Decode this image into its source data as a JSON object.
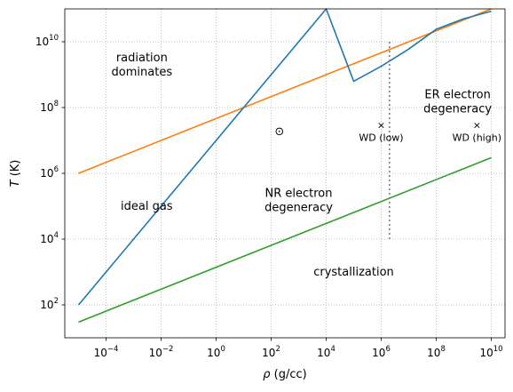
{
  "chart_data": {
    "type": "line",
    "xscale": "log",
    "yscale": "log",
    "xlim": [
      3.16e-06,
      31600000000
    ],
    "ylim": [
      10,
      100000000000
    ],
    "grid": true,
    "xlabel": {
      "var": "ρ",
      "unit": " (g/cc)"
    },
    "ylabel": {
      "var": "T",
      "unit": " (K)"
    },
    "x_ticks": [
      {
        "value": 0.0001,
        "base": "10",
        "exp": "−4"
      },
      {
        "value": 0.01,
        "base": "10",
        "exp": "−2"
      },
      {
        "value": 1,
        "base": "10",
        "exp": "0"
      },
      {
        "value": 100,
        "base": "10",
        "exp": "2"
      },
      {
        "value": 10000,
        "base": "10",
        "exp": "4"
      },
      {
        "value": 1000000,
        "base": "10",
        "exp": "6"
      },
      {
        "value": 100000000,
        "base": "10",
        "exp": "8"
      },
      {
        "value": 10000000000,
        "base": "10",
        "exp": "10"
      }
    ],
    "y_ticks": [
      {
        "value": 100,
        "base": "10",
        "exp": "2"
      },
      {
        "value": 10000,
        "base": "10",
        "exp": "4"
      },
      {
        "value": 1000000,
        "base": "10",
        "exp": "6"
      },
      {
        "value": 100000000,
        "base": "10",
        "exp": "8"
      },
      {
        "value": 10000000000,
        "base": "10",
        "exp": "10"
      }
    ],
    "series": [
      {
        "color": "#ff7f0e",
        "points": [
          [
            1e-05,
            1000000
          ],
          [
            10000000000,
            100000000000
          ]
        ]
      },
      {
        "color": "#1f77b4",
        "points": [
          [
            1e-05,
            100
          ],
          [
            0.0001,
            1000
          ],
          [
            0.001,
            10000
          ],
          [
            0.01,
            100000
          ],
          [
            0.1,
            1000000
          ],
          [
            1,
            10000000
          ],
          [
            10,
            100000000
          ],
          [
            100,
            1000000000
          ],
          [
            1000,
            10000000000
          ],
          [
            10000,
            100000000000
          ],
          [
            100000,
            630000000
          ],
          [
            1000000,
            1800000000
          ],
          [
            10000000,
            6000000000
          ],
          [
            100000000,
            24000000000
          ],
          [
            1000000000,
            50000000000
          ],
          [
            10000000000,
            85000000000
          ]
        ]
      },
      {
        "color": "#2ca02c",
        "points": [
          [
            1e-05,
            30
          ],
          [
            10000000000,
            3000000
          ]
        ]
      }
    ],
    "vline": {
      "x": 2000000,
      "y_from": 10000,
      "y_to": 10000000000,
      "color": "#7f7f7f"
    },
    "markers": [
      {
        "label": "WD (low)",
        "x": 1000000,
        "y": 30000000,
        "symbol": "×"
      },
      {
        "label": "WD (high)",
        "x": 3000000000,
        "y": 30000000,
        "symbol": "×"
      }
    ],
    "sun": {
      "x": 200,
      "y": 20000000,
      "symbol": "⊙"
    },
    "region_labels": [
      {
        "lines": [
          "radiation",
          "dominates"
        ],
        "x": 0.002,
        "y": 2000000000
      },
      {
        "lines": [
          "ER electron",
          "degeneracy"
        ],
        "x": 600000000,
        "y": 150000000
      },
      {
        "lines": [
          "ideal gas"
        ],
        "x": 0.003,
        "y": 100000
      },
      {
        "lines": [
          "NR electron",
          "degeneracy"
        ],
        "x": 1000,
        "y": 150000
      },
      {
        "lines": [
          "crystallization"
        ],
        "x": 100000,
        "y": 1000
      }
    ]
  }
}
